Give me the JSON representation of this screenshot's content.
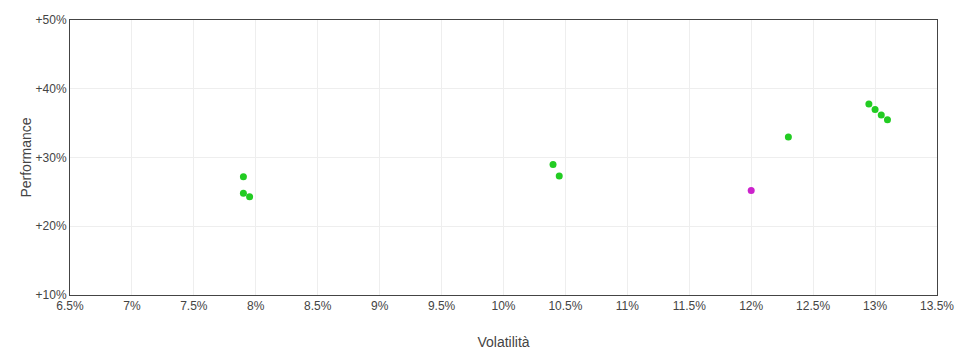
{
  "chart_data": {
    "type": "scatter",
    "xlabel": "Volatilità",
    "ylabel": "Performance",
    "series": [
      {
        "color": "#22cc22",
        "x": [
          0.079,
          0.079,
          0.0795,
          0.104,
          0.1045,
          0.123,
          0.1295,
          0.13,
          0.1305,
          0.131
        ],
        "values": [
          0.272,
          0.248,
          0.243,
          0.29,
          0.273,
          0.33,
          0.378,
          0.37,
          0.362,
          0.355
        ]
      },
      {
        "color": "#cc22cc",
        "x": [
          0.12
        ],
        "values": [
          0.252
        ]
      }
    ],
    "xlim": [
      0.065,
      0.135
    ],
    "ylim": [
      0.1,
      0.5
    ],
    "xticks": [
      {
        "value": 0.065,
        "label": "6.5%"
      },
      {
        "value": 0.07,
        "label": "7%"
      },
      {
        "value": 0.075,
        "label": "7.5%"
      },
      {
        "value": 0.08,
        "label": "8%"
      },
      {
        "value": 0.085,
        "label": "8.5%"
      },
      {
        "value": 0.09,
        "label": "9%"
      },
      {
        "value": 0.095,
        "label": "9.5%"
      },
      {
        "value": 0.1,
        "label": "10%"
      },
      {
        "value": 0.105,
        "label": "10.5%"
      },
      {
        "value": 0.11,
        "label": "11%"
      },
      {
        "value": 0.115,
        "label": "11.5%"
      },
      {
        "value": 0.12,
        "label": "12%"
      },
      {
        "value": 0.125,
        "label": "12.5%"
      },
      {
        "value": 0.13,
        "label": "13%"
      },
      {
        "value": 0.135,
        "label": "13.5%"
      }
    ],
    "yticks": [
      {
        "value": 0.1,
        "label": "+10%"
      },
      {
        "value": 0.2,
        "label": "+20%"
      },
      {
        "value": 0.3,
        "label": "+30%"
      },
      {
        "value": 0.4,
        "label": "+40%"
      },
      {
        "value": 0.5,
        "label": "+50%"
      }
    ],
    "grid": true
  }
}
